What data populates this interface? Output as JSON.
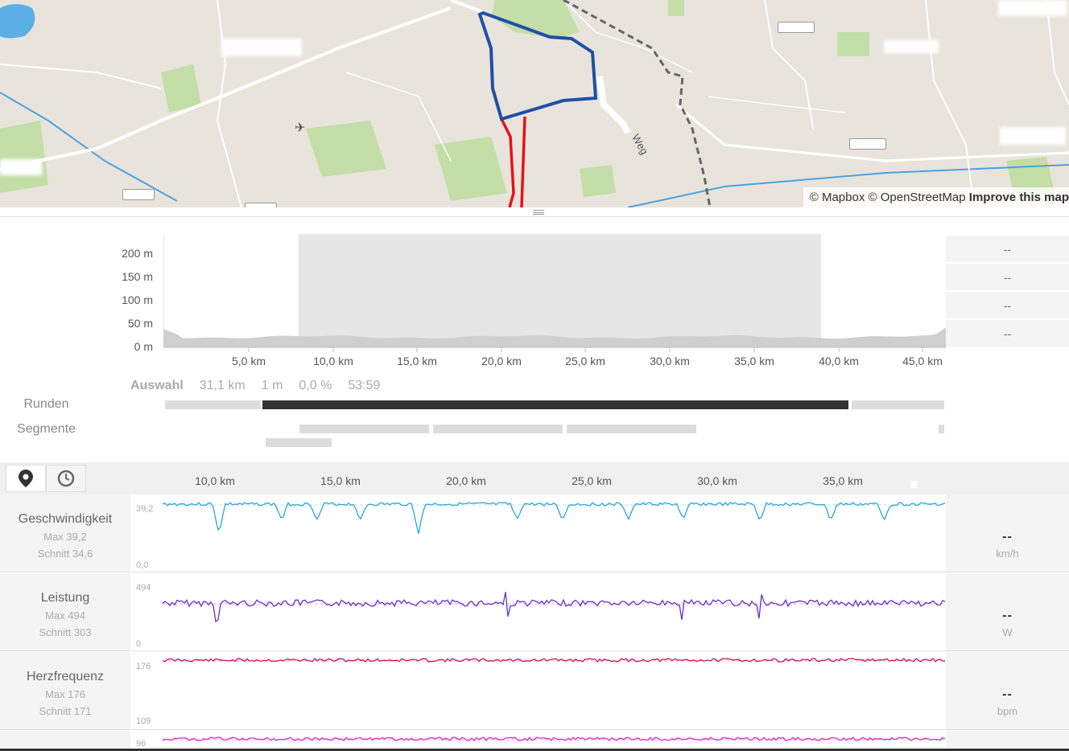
{
  "map": {
    "attribution": "© Mapbox © OpenStreetMap",
    "improve": "Improve this map",
    "road_label": "Weg",
    "colors": {
      "route_blue": "#1f4fa8",
      "route_red": "#e8101a",
      "water": "#3b9be0",
      "green": "#b6d99a",
      "border": "#777777"
    }
  },
  "elevation": {
    "y_ticks": [
      "200 m",
      "150 m",
      "100 m",
      "50 m",
      "0 m"
    ],
    "x_ticks": [
      "5,0 km",
      "10,0 km",
      "15,0 km",
      "20,0 km",
      "25,0 km",
      "30,0 km",
      "35,0 km",
      "40,0 km",
      "45,0 km"
    ],
    "side_values": [
      "--",
      "--",
      "--",
      "--"
    ],
    "selection": {
      "label": "Auswahl",
      "distance": "31,1 km",
      "elevation": "1 m",
      "grade": "0,0 %",
      "time": "53:59"
    },
    "rows": {
      "laps": "Runden",
      "segments": "Segmente"
    }
  },
  "toolbar": {
    "location_icon": "map-marker-icon",
    "time_icon": "clock-icon",
    "x_ticks": [
      "10,0 km",
      "15,0 km",
      "20,0 km",
      "25,0 km",
      "30,0 km",
      "35,0 km"
    ]
  },
  "metrics": [
    {
      "name": "Geschwindigkeit",
      "max": "Max 39,2",
      "avg": "Schnitt 34,6",
      "top": "39,2",
      "bottom": "0,0",
      "value": "--",
      "unit": "km/h",
      "color": "#2aa6d8"
    },
    {
      "name": "Leistung",
      "max": "Max 494",
      "avg": "Schnitt 303",
      "top": "494",
      "bottom": "0",
      "value": "--",
      "unit": "W",
      "color": "#6a2fc8"
    },
    {
      "name": "Herzfrequenz",
      "max": "Max 176",
      "avg": "Schnitt 171",
      "top": "176",
      "bottom": "109",
      "value": "--",
      "unit": "bpm",
      "color": "#d0104e"
    },
    {
      "name": "",
      "max": "",
      "avg": "",
      "top": "96",
      "bottom": "",
      "value": "",
      "unit": "",
      "color": "#e020d0"
    }
  ]
}
